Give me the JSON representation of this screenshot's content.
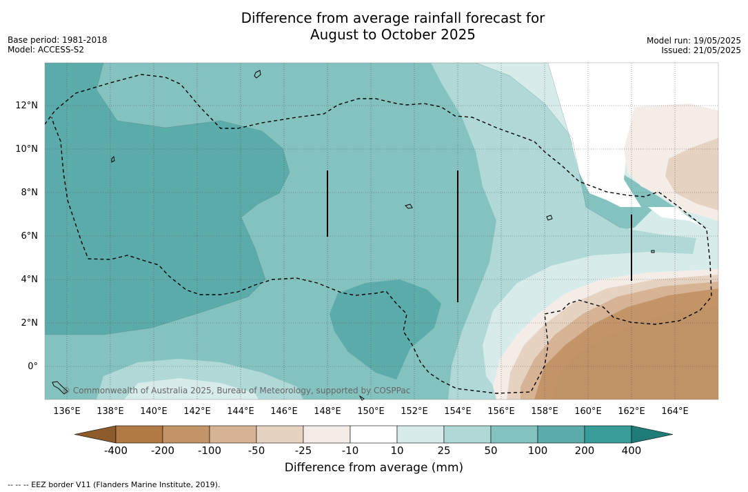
{
  "header": {
    "title_line1": "Difference from average rainfall forecast for",
    "title_line2": "August to October 2025",
    "base_period": "Base period: 1981-2018",
    "model": "Model: ACCESS-S2",
    "model_run": "Model run: 19/05/2025",
    "issued": "Issued: 21/05/2025"
  },
  "map": {
    "copyright": "© Commonwealth of Australia 2025, Bureau of Meteorology, supported by COSPPac",
    "lon_labels": [
      "136°E",
      "138°E",
      "140°E",
      "142°E",
      "144°E",
      "146°E",
      "148°E",
      "150°E",
      "152°E",
      "154°E",
      "156°E",
      "158°E",
      "160°E",
      "162°E",
      "164°E"
    ],
    "lat_labels": [
      "12°N",
      "10°N",
      "8°N",
      "6°N",
      "4°N",
      "2°N",
      "0°"
    ],
    "lon_range": [
      135,
      166
    ],
    "lat_range": [
      -1.5,
      14
    ]
  },
  "colorbar": {
    "title": "Difference from average (mm)",
    "ticks": [
      "-400",
      "-200",
      "-100",
      "-50",
      "-25",
      "-10",
      "10",
      "25",
      "50",
      "100",
      "200",
      "400"
    ],
    "colors": [
      "#8c5a2b",
      "#b07a45",
      "#c39468",
      "#d6b394",
      "#e6d2c1",
      "#f4ece7",
      "#ffffff",
      "#d6ebea",
      "#afd8d7",
      "#84c2c0",
      "#5aabaa",
      "#389c98",
      "#1f7c78"
    ]
  },
  "footnote": "--  --  -- EEZ border V11 (Flanders Marine Institute, 2019)."
}
